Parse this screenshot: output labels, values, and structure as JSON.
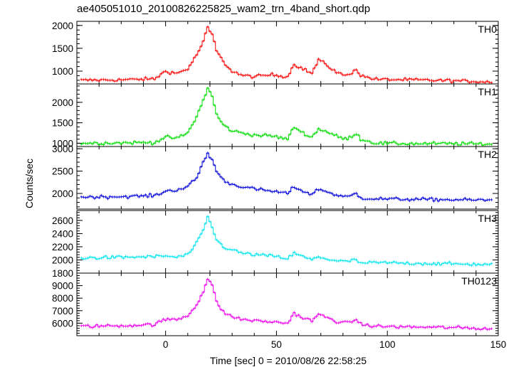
{
  "chart_data": {
    "type": "line",
    "title": "ae405051010_20100826225825_wam2_trn_4band_short.qdp",
    "xlabel": "Time [sec] 0 = 2010/08/26 22:58:25",
    "ylabel": "Counts/sec",
    "xlim": [
      -40,
      150
    ],
    "x_ticks": [
      0,
      50,
      100,
      150
    ],
    "x_tick_labels": [
      "0",
      "50",
      "100",
      "150"
    ],
    "x_step": 1.0,
    "panels": [
      {
        "name": "TH0",
        "color": "#ff0000",
        "ylim": [
          720,
          2090
        ],
        "y_ticks": [
          1000,
          1500,
          2000
        ],
        "y_tick_labels": [
          "1000",
          "1500",
          "2000"
        ],
        "series": [
          {
            "x": [
              -38,
              -20,
              -5,
              0,
              5,
              10,
              14,
              17,
              19,
              21,
              23,
              26,
              30,
              35,
              40,
              48,
              55,
              58,
              62,
              66,
              69,
              72,
              78,
              82,
              86,
              88,
              95,
              110,
              130,
              147
            ],
            "y": [
              800,
              810,
              830,
              1000,
              950,
              1050,
              1350,
              1650,
              1950,
              1800,
              1450,
              1200,
              1000,
              900,
              880,
              920,
              880,
              1150,
              1050,
              950,
              1250,
              1150,
              950,
              900,
              1050,
              900,
              820,
              810,
              790,
              760
            ]
          }
        ]
      },
      {
        "name": "TH1",
        "color": "#00dd00",
        "ylim": [
          920,
          2450
        ],
        "y_ticks": [
          1000,
          1500,
          2000
        ],
        "y_tick_labels": [
          "1000",
          "1500",
          "2000"
        ],
        "series": [
          {
            "x": [
              -38,
              -20,
              -5,
              0,
              5,
              10,
              14,
              17,
              19,
              21,
              23,
              26,
              30,
              35,
              40,
              48,
              55,
              58,
              62,
              66,
              69,
              72,
              78,
              82,
              86,
              88,
              95,
              110,
              130,
              147
            ],
            "y": [
              1000,
              1010,
              1020,
              1150,
              1120,
              1250,
              1650,
              2050,
              2350,
              2150,
              1700,
              1450,
              1300,
              1250,
              1200,
              1180,
              1100,
              1400,
              1250,
              1150,
              1350,
              1300,
              1150,
              1100,
              1250,
              1100,
              1000,
              990,
              990,
              980
            ]
          }
        ]
      },
      {
        "name": "TH2",
        "color": "#0000dd",
        "ylim": [
          1650,
          3050
        ],
        "y_ticks": [
          2000,
          2500,
          3000
        ],
        "y_tick_labels": [
          "2000",
          "2500",
          "3000"
        ],
        "series": [
          {
            "x": [
              -38,
              -20,
              -5,
              0,
              5,
              10,
              14,
              17,
              19,
              21,
              23,
              26,
              30,
              35,
              40,
              48,
              55,
              58,
              62,
              66,
              69,
              72,
              78,
              82,
              86,
              88,
              95,
              110,
              130,
              147
            ],
            "y": [
              1920,
              1930,
              1950,
              2050,
              2080,
              2150,
              2350,
              2700,
              2900,
              2750,
              2500,
              2300,
              2200,
              2150,
              2100,
              2050,
              2000,
              2150,
              2050,
              1980,
              2100,
              2050,
              1950,
              1920,
              2000,
              1900,
              1880,
              1870,
              1860,
              1850
            ]
          }
        ]
      },
      {
        "name": "TH3",
        "color": "#00e5ee",
        "ylim": [
          1800,
          2750
        ],
        "y_ticks": [
          1800,
          2000,
          2200,
          2400,
          2600
        ],
        "y_tick_labels": [
          "1800",
          "2000",
          "2200",
          "2400",
          "2600"
        ],
        "series": [
          {
            "x": [
              -38,
              -20,
              -5,
              0,
              5,
              10,
              14,
              17,
              19,
              21,
              23,
              26,
              30,
              35,
              40,
              48,
              55,
              58,
              62,
              66,
              69,
              72,
              78,
              82,
              86,
              88,
              95,
              110,
              130,
              147
            ],
            "y": [
              2030,
              2040,
              2050,
              2060,
              2040,
              2080,
              2250,
              2450,
              2650,
              2500,
              2300,
              2200,
              2150,
              2100,
              2080,
              2060,
              2020,
              2100,
              2050,
              2000,
              2050,
              2020,
              1980,
              1980,
              2000,
              1950,
              1960,
              1950,
              1940,
              1930
            ]
          }
        ]
      },
      {
        "name": "TH0123",
        "color": "#ee00ee",
        "ylim": [
          5000,
          10000
        ],
        "y_ticks": [
          6000,
          7000,
          8000,
          9000
        ],
        "y_tick_labels": [
          "6000",
          "7000",
          "8000",
          "9000"
        ],
        "series": [
          {
            "x": [
              -38,
              -20,
              -5,
              0,
              5,
              10,
              14,
              17,
              19,
              21,
              23,
              26,
              30,
              35,
              40,
              48,
              55,
              58,
              62,
              66,
              69,
              72,
              78,
              82,
              86,
              88,
              95,
              110,
              130,
              147
            ],
            "y": [
              5750,
              5800,
              5900,
              6300,
              6300,
              6600,
              7500,
              8500,
              9600,
              9000,
              7700,
              6900,
              6500,
              6300,
              6200,
              6100,
              6000,
              6800,
              6400,
              6200,
              6700,
              6500,
              6100,
              6000,
              6300,
              5900,
              5750,
              5700,
              5650,
              5550
            ]
          }
        ]
      }
    ]
  }
}
